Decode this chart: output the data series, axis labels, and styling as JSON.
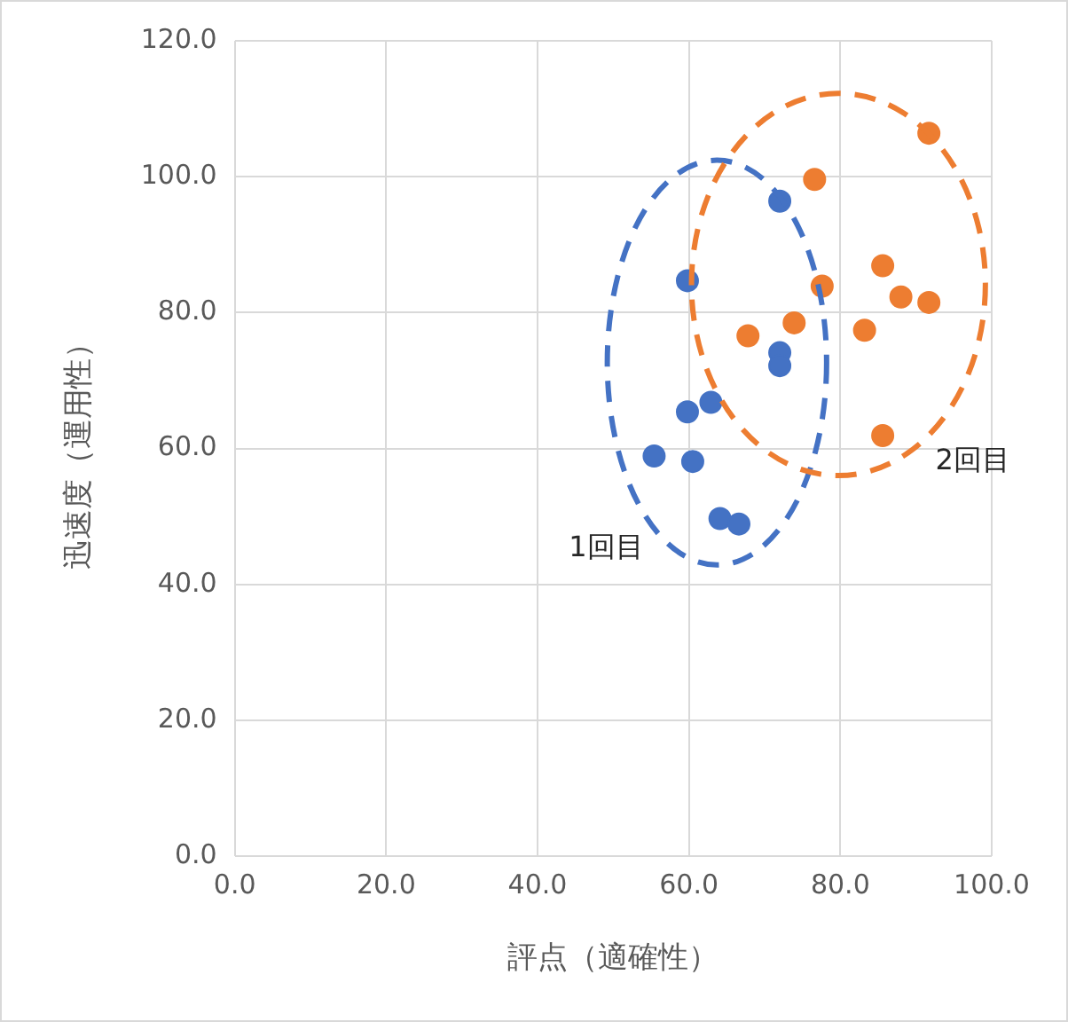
{
  "chart_data": {
    "type": "scatter",
    "xlabel": "評点（適確性）",
    "ylabel": "迅速度（運用性）",
    "xlim": [
      0,
      100
    ],
    "ylim": [
      0,
      120
    ],
    "xticks": [
      {
        "value": 0,
        "label": "0.0"
      },
      {
        "value": 20,
        "label": "20.0"
      },
      {
        "value": 40,
        "label": "40.0"
      },
      {
        "value": 60,
        "label": "60.0"
      },
      {
        "value": 80,
        "label": "80.0"
      },
      {
        "value": 100,
        "label": "100.0"
      }
    ],
    "yticks": [
      {
        "value": 0,
        "label": "0.0"
      },
      {
        "value": 20,
        "label": "20.0"
      },
      {
        "value": 40,
        "label": "40.0"
      },
      {
        "value": 60,
        "label": "60.0"
      },
      {
        "value": 80,
        "label": "80.0"
      },
      {
        "value": 100,
        "label": "100.0"
      },
      {
        "value": 120,
        "label": "120.0"
      }
    ],
    "grid": true,
    "legend": false,
    "marker": "circle",
    "series": [
      {
        "name": "1回目",
        "color": "#4472c4",
        "x": [
          72.0,
          59.8,
          72.0,
          72.0,
          59.8,
          62.9,
          55.4,
          60.5,
          64.1,
          66.6
        ],
        "values": [
          96.4,
          84.7,
          74.1,
          72.2,
          65.4,
          66.8,
          58.9,
          58.1,
          49.7,
          48.9
        ]
      },
      {
        "name": "2回目",
        "color": "#ed7d31",
        "x": [
          91.7,
          76.6,
          85.6,
          77.6,
          88.0,
          91.7,
          73.9,
          67.8,
          83.2,
          85.6
        ],
        "values": [
          106.4,
          99.6,
          86.9,
          83.9,
          82.3,
          81.5,
          78.5,
          76.6,
          77.4,
          61.9
        ]
      }
    ]
  }
}
